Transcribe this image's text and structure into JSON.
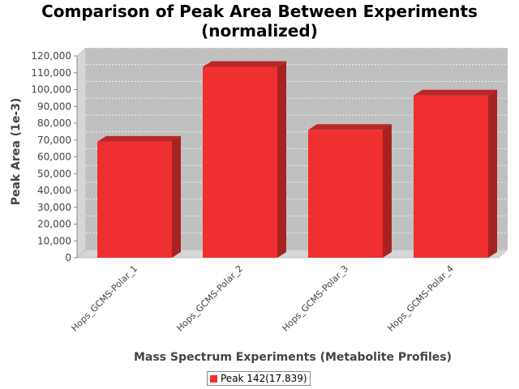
{
  "chart_data": {
    "type": "bar",
    "title": "Comparison of Peak Area Between Experiments\n(normalized)",
    "title_lines": [
      "Comparison of Peak Area Between Experiments",
      "(normalized)"
    ],
    "xlabel": "Mass Spectrum Experiments (Metabolite Profiles)",
    "ylabel": "Peak Area (1e-3)",
    "categories": [
      "Hops_GCMS-Polar_1",
      "Hops_GCMS-Polar_2",
      "Hops_GCMS-Polar_3",
      "Hops_GCMS-Polar_4"
    ],
    "series": [
      {
        "name": "Peak 142(17.839)",
        "values": [
          69000,
          113500,
          76000,
          96500
        ]
      }
    ],
    "ylim": [
      0,
      120000
    ],
    "yticks": [
      0,
      10000,
      20000,
      30000,
      40000,
      50000,
      60000,
      70000,
      80000,
      90000,
      100000,
      110000,
      120000
    ],
    "ytick_labels": [
      "0",
      "10,000",
      "20,000",
      "30,000",
      "40,000",
      "50,000",
      "60,000",
      "70,000",
      "80,000",
      "90,000",
      "100,000",
      "110,000",
      "120,000"
    ],
    "grid": true,
    "legend_position": "bottom",
    "bar_style": "3d",
    "colors": {
      "bar": "#f03030",
      "bar_top": "#b82828",
      "bar_side": "#a82222",
      "plot_background": "#c0c0c0",
      "plot_wall": "#d6d6d6",
      "gridline": "#ffffff"
    }
  }
}
